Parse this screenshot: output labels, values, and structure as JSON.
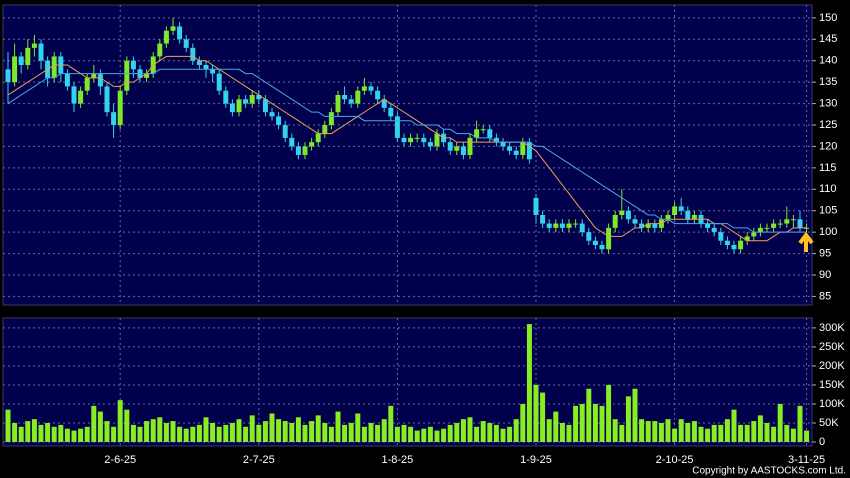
{
  "chart_data": [
    {
      "type": "candlestick",
      "ylim": [
        83,
        153
      ],
      "yticks": [
        85,
        90,
        95,
        100,
        105,
        110,
        115,
        120,
        125,
        130,
        135,
        140,
        145,
        150
      ],
      "grid": true,
      "up_color": "#7ee82a",
      "down_color": "#33d3ee",
      "candles": [
        [
          138,
          142,
          130,
          135
        ],
        [
          135,
          144,
          134,
          141
        ],
        [
          141,
          142,
          137,
          139
        ],
        [
          139,
          145,
          138,
          143
        ],
        [
          143,
          146,
          141,
          144
        ],
        [
          144,
          145,
          138,
          140
        ],
        [
          140,
          141,
          134,
          136
        ],
        [
          136,
          142,
          135,
          141
        ],
        [
          141,
          142,
          135,
          137
        ],
        [
          137,
          138,
          133,
          134
        ],
        [
          134,
          135,
          128,
          130
        ],
        [
          130,
          134,
          129,
          133
        ],
        [
          133,
          137,
          132,
          136
        ],
        [
          136,
          139,
          135,
          137
        ],
        [
          137,
          138,
          132,
          134
        ],
        [
          134,
          135,
          127,
          128
        ],
        [
          128,
          130,
          122,
          125
        ],
        [
          125,
          134,
          124,
          133
        ],
        [
          133,
          141,
          132,
          140
        ],
        [
          140,
          141,
          136,
          138
        ],
        [
          138,
          139,
          135,
          136
        ],
        [
          136,
          138,
          135,
          137
        ],
        [
          137,
          142,
          136,
          141
        ],
        [
          141,
          145,
          140,
          144
        ],
        [
          144,
          148,
          143,
          147
        ],
        [
          147,
          150,
          146,
          148
        ],
        [
          148,
          149,
          144,
          145
        ],
        [
          145,
          146,
          142,
          143
        ],
        [
          143,
          144,
          139,
          140
        ],
        [
          140,
          141,
          138,
          139
        ],
        [
          139,
          140,
          136,
          138
        ],
        [
          138,
          139,
          135,
          137
        ],
        [
          137,
          138,
          132,
          133
        ],
        [
          133,
          134,
          129,
          130
        ],
        [
          130,
          131,
          127,
          128
        ],
        [
          128,
          132,
          127,
          131
        ],
        [
          131,
          132,
          129,
          130
        ],
        [
          130,
          133,
          129,
          132
        ],
        [
          132,
          133,
          130,
          131
        ],
        [
          131,
          132,
          127,
          128
        ],
        [
          128,
          129,
          126,
          127
        ],
        [
          127,
          128,
          124,
          125
        ],
        [
          125,
          126,
          121,
          122
        ],
        [
          122,
          123,
          119,
          120
        ],
        [
          120,
          121,
          117,
          118
        ],
        [
          118,
          121,
          117,
          120
        ],
        [
          120,
          122,
          119,
          121
        ],
        [
          121,
          124,
          120,
          123
        ],
        [
          123,
          126,
          122,
          125
        ],
        [
          125,
          129,
          124,
          128
        ],
        [
          128,
          133,
          127,
          132
        ],
        [
          132,
          134,
          130,
          131
        ],
        [
          131,
          132,
          129,
          130
        ],
        [
          130,
          134,
          129,
          133
        ],
        [
          133,
          136,
          132,
          134
        ],
        [
          134,
          135,
          132,
          133
        ],
        [
          133,
          134,
          130,
          131
        ],
        [
          131,
          132,
          128,
          129
        ],
        [
          129,
          130,
          126,
          127
        ],
        [
          127,
          128,
          121,
          122
        ],
        [
          122,
          123,
          120,
          121
        ],
        [
          121,
          123,
          120,
          122
        ],
        [
          122,
          123,
          121,
          122
        ],
        [
          122,
          123,
          120,
          121
        ],
        [
          121,
          122,
          119,
          120
        ],
        [
          120,
          124,
          119,
          123
        ],
        [
          123,
          124,
          120,
          121
        ],
        [
          121,
          122,
          118,
          119
        ],
        [
          119,
          121,
          118,
          120
        ],
        [
          120,
          121,
          117,
          118
        ],
        [
          118,
          123,
          117,
          122
        ],
        [
          122,
          126,
          121,
          124
        ],
        [
          124,
          125,
          123,
          124
        ],
        [
          124,
          125,
          121,
          122
        ],
        [
          122,
          123,
          120,
          121
        ],
        [
          121,
          122,
          119,
          120
        ],
        [
          120,
          121,
          118,
          119
        ],
        [
          119,
          120,
          117,
          118
        ],
        [
          118,
          122,
          117,
          121
        ],
        [
          121,
          122,
          116,
          117
        ],
        [
          108,
          109,
          102,
          104
        ],
        [
          104,
          105,
          101,
          102
        ],
        [
          102,
          103,
          100,
          101
        ],
        [
          101,
          103,
          100,
          102
        ],
        [
          102,
          103,
          100,
          101
        ],
        [
          101,
          103,
          100,
          102
        ],
        [
          102,
          103,
          101,
          102
        ],
        [
          102,
          103,
          99,
          100
        ],
        [
          100,
          101,
          97,
          98
        ],
        [
          98,
          99,
          96,
          97
        ],
        [
          97,
          98,
          95,
          96
        ],
        [
          96,
          102,
          95,
          101
        ],
        [
          101,
          105,
          100,
          104
        ],
        [
          104,
          110,
          103,
          105
        ],
        [
          105,
          106,
          102,
          103
        ],
        [
          103,
          104,
          101,
          102
        ],
        [
          102,
          103,
          100,
          101
        ],
        [
          101,
          103,
          100,
          102
        ],
        [
          102,
          103,
          100,
          101
        ],
        [
          101,
          104,
          100,
          103
        ],
        [
          103,
          105,
          102,
          104
        ],
        [
          104,
          107,
          103,
          106
        ],
        [
          106,
          108,
          104,
          105
        ],
        [
          105,
          106,
          102,
          103
        ],
        [
          103,
          105,
          102,
          104
        ],
        [
          104,
          105,
          101,
          102
        ],
        [
          102,
          103,
          100,
          101
        ],
        [
          101,
          102,
          99,
          100
        ],
        [
          100,
          101,
          97,
          98
        ],
        [
          98,
          99,
          96,
          97
        ],
        [
          97,
          98,
          95,
          96
        ],
        [
          96,
          99,
          95,
          98
        ],
        [
          98,
          100,
          97,
          99
        ],
        [
          99,
          101,
          98,
          100
        ],
        [
          100,
          102,
          99,
          101
        ],
        [
          101,
          102,
          100,
          101
        ],
        [
          101,
          103,
          100,
          102
        ],
        [
          102,
          103,
          101,
          102
        ],
        [
          102,
          106,
          101,
          103
        ],
        [
          103,
          104,
          101,
          103
        ],
        [
          103,
          105,
          100,
          101
        ],
        [
          101,
          102,
          100,
          101
        ]
      ],
      "series": [
        {
          "color": "#f0a050",
          "values": [
            132,
            133,
            134,
            135,
            136,
            137,
            138,
            139,
            139,
            139,
            138,
            137,
            136,
            136,
            136,
            135,
            134,
            134,
            135,
            135,
            136,
            137,
            139,
            140,
            141,
            141,
            141,
            141,
            141,
            140,
            140,
            139,
            138,
            137,
            136,
            135,
            134,
            133,
            132,
            131,
            130,
            129,
            128,
            127,
            126,
            125,
            124,
            123,
            123,
            123,
            124,
            125,
            126,
            127,
            128,
            129,
            130,
            131,
            130,
            129,
            128,
            127,
            126,
            125,
            124,
            123,
            122,
            122,
            121,
            121,
            121,
            121,
            121,
            121,
            121,
            121,
            121,
            121,
            121,
            120,
            119,
            117,
            115,
            113,
            111,
            109,
            107,
            105,
            103,
            101,
            100,
            99,
            99,
            99,
            100,
            101,
            101,
            102,
            102,
            102,
            103,
            103,
            103,
            103,
            103,
            103,
            103,
            102,
            102,
            101,
            100,
            99,
            98,
            98,
            98,
            98,
            99,
            100,
            100,
            101,
            101,
            101
          ]
        },
        {
          "color": "#4aa8e8",
          "values": [
            130,
            131,
            132,
            133,
            134,
            135,
            136,
            136,
            137,
            137,
            137,
            137,
            137,
            137,
            137,
            137,
            137,
            137,
            137,
            137,
            137,
            137,
            137,
            138,
            138,
            138,
            138,
            138,
            138,
            138,
            138,
            138,
            138,
            138,
            138,
            138,
            137,
            137,
            136,
            135,
            134,
            133,
            132,
            131,
            130,
            129,
            128,
            128,
            127,
            127,
            127,
            127,
            127,
            127,
            126,
            126,
            126,
            126,
            126,
            126,
            126,
            126,
            125,
            125,
            125,
            125,
            124,
            124,
            123,
            123,
            123,
            122,
            122,
            122,
            121,
            121,
            121,
            121,
            121,
            121,
            120,
            120,
            119,
            118,
            117,
            116,
            115,
            114,
            113,
            112,
            111,
            110,
            109,
            108,
            107,
            106,
            105,
            104,
            104,
            103,
            103,
            102,
            102,
            102,
            102,
            102,
            102,
            102,
            102,
            102,
            101,
            101,
            101,
            100,
            100,
            100,
            100,
            100,
            100,
            100,
            100,
            100
          ]
        }
      ]
    },
    {
      "type": "bar",
      "ylim": [
        0,
        326000
      ],
      "yticks": [
        0,
        {
          "value": 50000,
          "label": "50K"
        },
        {
          "value": 100000,
          "label": "100K"
        },
        {
          "value": 150000,
          "label": "150K"
        },
        {
          "value": 200000,
          "label": "200K"
        },
        {
          "value": 250000,
          "label": "250K"
        },
        {
          "value": 300000,
          "label": "300K"
        }
      ],
      "grid": true,
      "color": "#88ee22",
      "categories": [
        null,
        null,
        null,
        null,
        null,
        null,
        null,
        null,
        null,
        null,
        null,
        null,
        null,
        null,
        null,
        null,
        null,
        "2-6-25",
        null,
        null,
        null,
        null,
        null,
        null,
        null,
        null,
        null,
        null,
        null,
        null,
        null,
        null,
        null,
        null,
        null,
        null,
        null,
        null,
        "2-7-25",
        null,
        null,
        null,
        null,
        null,
        null,
        null,
        null,
        null,
        null,
        null,
        null,
        null,
        null,
        null,
        null,
        null,
        null,
        null,
        null,
        "1-8-25",
        null,
        null,
        null,
        null,
        null,
        null,
        null,
        null,
        null,
        null,
        null,
        null,
        null,
        null,
        null,
        null,
        null,
        null,
        null,
        null,
        "1-9-25",
        null,
        null,
        null,
        null,
        null,
        null,
        null,
        null,
        null,
        null,
        null,
        null,
        null,
        null,
        null,
        null,
        null,
        null,
        null,
        null,
        "2-10-25",
        null,
        null,
        null,
        null,
        null,
        null,
        null,
        null,
        null,
        null,
        null,
        null,
        null,
        null,
        null,
        null,
        null,
        null,
        null,
        "3-11-25"
      ],
      "values": [
        85000,
        50000,
        40000,
        55000,
        60000,
        45000,
        50000,
        40000,
        45000,
        35000,
        30000,
        35000,
        40000,
        95000,
        80000,
        55000,
        40000,
        110000,
        85000,
        45000,
        40000,
        55000,
        60000,
        65000,
        50000,
        55000,
        40000,
        35000,
        40000,
        45000,
        65000,
        50000,
        40000,
        45000,
        50000,
        60000,
        40000,
        70000,
        45000,
        55000,
        75000,
        60000,
        55000,
        50000,
        65000,
        45000,
        55000,
        70000,
        50000,
        40000,
        80000,
        45000,
        50000,
        75000,
        40000,
        50000,
        45000,
        60000,
        95000,
        40000,
        45000,
        40000,
        30000,
        35000,
        40000,
        30000,
        35000,
        45000,
        50000,
        60000,
        65000,
        40000,
        55000,
        50000,
        45000,
        35000,
        40000,
        60000,
        100000,
        310000,
        150000,
        130000,
        60000,
        80000,
        50000,
        45000,
        95000,
        100000,
        140000,
        100000,
        95000,
        150000,
        60000,
        45000,
        120000,
        140000,
        60000,
        55000,
        55000,
        50000,
        60000,
        35000,
        60000,
        50000,
        55000,
        40000,
        35000,
        45000,
        45000,
        60000,
        85000,
        45000,
        45000,
        55000,
        70000,
        50000,
        40000,
        100000,
        45000,
        35000,
        95000,
        30000
      ]
    }
  ],
  "copyright": "Copyright by AASTOCKS.com Ltd."
}
